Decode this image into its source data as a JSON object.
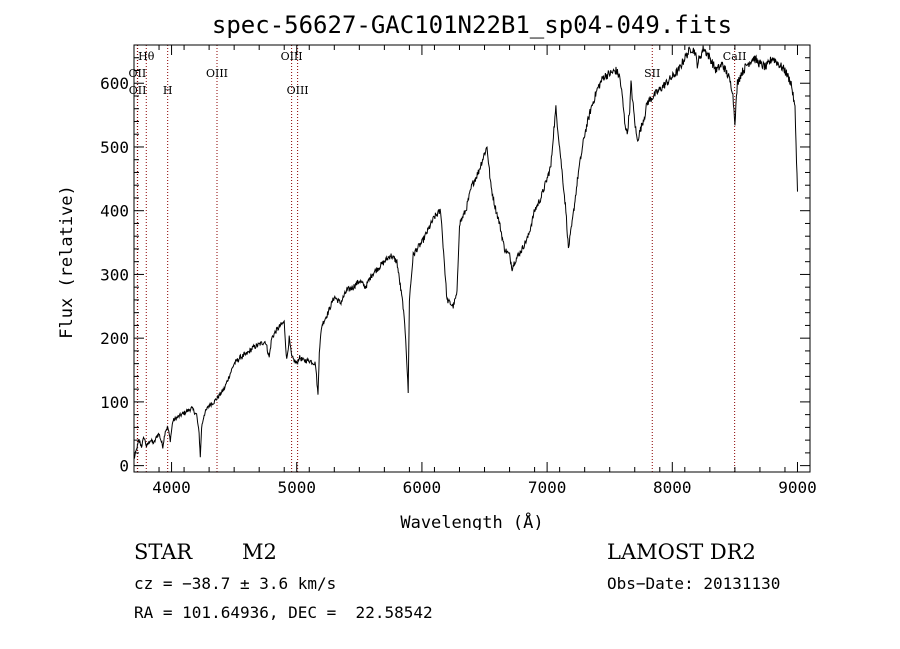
{
  "chart_data": {
    "type": "line",
    "title": "spec-56627-GAC101N22B1_sp04-049.fits",
    "xlabel": "Wavelength (Å)",
    "ylabel": "Flux (relative)",
    "xlim": [
      3700,
      9100
    ],
    "ylim": [
      -10,
      660
    ],
    "xticks": [
      4000,
      5000,
      6000,
      7000,
      8000,
      9000
    ],
    "yticks": [
      0,
      100,
      200,
      300,
      400,
      500,
      600
    ],
    "grid": false,
    "line_color": "#000000",
    "marker_color": "#8b0000",
    "spectral_lines": [
      {
        "label": "Hθ",
        "wavelength": 3798,
        "row": 0
      },
      {
        "label": "OII",
        "wavelength": 3727,
        "row": 1
      },
      {
        "label": "OII",
        "wavelength": 3729,
        "row": 2
      },
      {
        "label": "H",
        "wavelength": 3969,
        "row": 2
      },
      {
        "label": "OIII",
        "wavelength": 4363,
        "row": 1
      },
      {
        "label": "OIII",
        "wavelength": 4959,
        "row": 0
      },
      {
        "label": "OIII",
        "wavelength": 5007,
        "row": 2
      },
      {
        "label": "SII",
        "wavelength": 7840,
        "row": 1
      },
      {
        "label": "CaII",
        "wavelength": 8498,
        "row": 0
      }
    ],
    "series": [
      {
        "x": [
          3700,
          3720,
          3740,
          3760,
          3780,
          3800,
          3830,
          3860,
          3880,
          3900,
          3930,
          3950,
          3970,
          3990,
          4010,
          4040,
          4080,
          4120,
          4160,
          4200,
          4220,
          4230,
          4240,
          4260,
          4300,
          4340,
          4360,
          4380,
          4420,
          4460,
          4500,
          4550,
          4600,
          4650,
          4700,
          4750,
          4780,
          4800,
          4830,
          4850,
          4870,
          4900,
          4920,
          4940,
          4960,
          4980,
          5000,
          5020,
          5050,
          5100,
          5150,
          5170,
          5180,
          5200,
          5250,
          5300,
          5350,
          5400,
          5450,
          5500,
          5550,
          5600,
          5650,
          5700,
          5750,
          5800,
          5850,
          5870,
          5890,
          5900,
          5930,
          5960,
          6000,
          6050,
          6100,
          6150,
          6200,
          6250,
          6280,
          6300,
          6350,
          6400,
          6450,
          6500,
          6520,
          6550,
          6580,
          6620,
          6660,
          6700,
          6720,
          6740,
          6770,
          6800,
          6850,
          6900,
          6950,
          7000,
          7030,
          7050,
          7070,
          7100,
          7130,
          7150,
          7170,
          7200,
          7250,
          7300,
          7350,
          7400,
          7450,
          7500,
          7550,
          7580,
          7600,
          7620,
          7640,
          7660,
          7670,
          7680,
          7700,
          7720,
          7750,
          7780,
          7800,
          7850,
          7900,
          7950,
          8000,
          8050,
          8100,
          8150,
          8180,
          8200,
          8250,
          8300,
          8350,
          8400,
          8450,
          8480,
          8500,
          8520,
          8550,
          8600,
          8650,
          8700,
          8750,
          8800,
          8850,
          8900,
          8950,
          8980,
          9000
        ],
        "y": [
          10,
          25,
          40,
          30,
          45,
          30,
          40,
          35,
          45,
          50,
          30,
          55,
          60,
          40,
          70,
          75,
          80,
          85,
          90,
          80,
          50,
          15,
          60,
          80,
          95,
          100,
          105,
          110,
          120,
          140,
          160,
          170,
          175,
          185,
          190,
          195,
          170,
          200,
          210,
          215,
          220,
          225,
          165,
          200,
          170,
          165,
          160,
          170,
          165,
          165,
          160,
          110,
          180,
          220,
          240,
          265,
          255,
          275,
          280,
          290,
          280,
          300,
          310,
          320,
          330,
          320,
          250,
          200,
          115,
          260,
          330,
          340,
          350,
          370,
          390,
          400,
          260,
          250,
          270,
          380,
          400,
          440,
          460,
          490,
          500,
          440,
          410,
          380,
          340,
          330,
          310,
          320,
          330,
          340,
          360,
          400,
          420,
          450,
          470,
          520,
          560,
          500,
          440,
          400,
          340,
          380,
          460,
          520,
          560,
          590,
          610,
          615,
          620,
          610,
          580,
          540,
          520,
          560,
          600,
          580,
          540,
          510,
          530,
          550,
          570,
          580,
          590,
          600,
          610,
          620,
          640,
          655,
          650,
          630,
          655,
          640,
          620,
          630,
          610,
          590,
          540,
          600,
          615,
          630,
          640,
          630,
          625,
          640,
          630,
          620,
          600,
          560,
          430
        ]
      }
    ]
  },
  "meta": {
    "object_class": "STAR",
    "object_subclass": "M2",
    "survey": "LAMOST DR2",
    "redshift_text": "cz = −38.7 ± 3.6 km/s",
    "obs_date_text": "Obs−Date: 20131130",
    "coords_text": "RA = 101.64936, DEC =  22.58542"
  }
}
